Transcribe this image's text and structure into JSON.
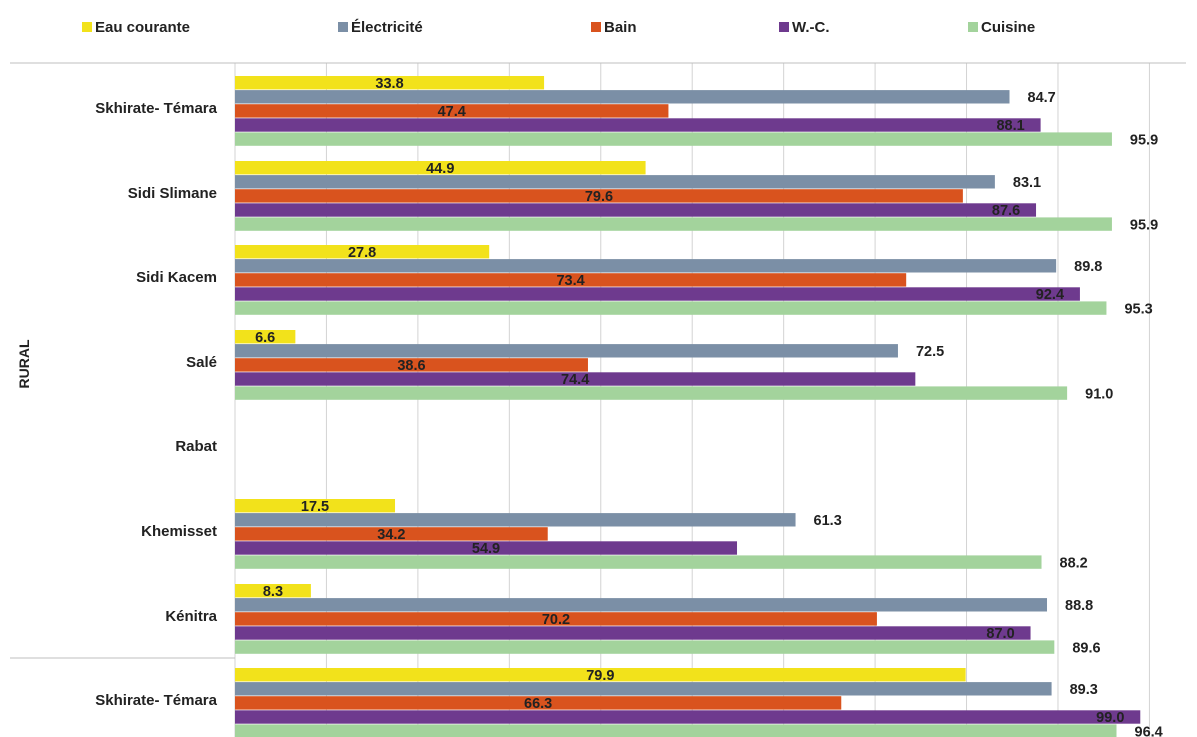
{
  "chart_data": {
    "type": "bar",
    "orientation": "horizontal",
    "title": "",
    "xlabel": "",
    "ylabel": "",
    "xlim": [
      0,
      100
    ],
    "grid": true,
    "legend_position": "top",
    "groups": [
      {
        "label": "RURAL",
        "categories": [
          "Skhirate- Témara",
          "Sidi Slimane",
          "Sidi Kacem",
          "Salé",
          "Rabat",
          "Khemisset",
          "Kénitra"
        ]
      },
      {
        "label": "",
        "categories": [
          "Skhirate- Témara"
        ]
      }
    ],
    "categories": [
      "Skhirate- Témara",
      "Sidi Slimane",
      "Sidi Kacem",
      "Salé",
      "Rabat",
      "Khemisset",
      "Kénitra",
      "Skhirate- Témara"
    ],
    "series": [
      {
        "name": "Eau courante",
        "color": "#f2e21b",
        "values": [
          33.8,
          44.9,
          27.8,
          6.6,
          null,
          17.5,
          8.3,
          79.9
        ]
      },
      {
        "name": "Électricité",
        "color": "#7b8fa6",
        "values": [
          84.7,
          83.1,
          89.8,
          72.5,
          null,
          61.3,
          88.8,
          89.3
        ]
      },
      {
        "name": "Bain",
        "color": "#d9531e",
        "values": [
          47.4,
          79.6,
          73.4,
          38.6,
          null,
          34.2,
          70.2,
          66.3
        ]
      },
      {
        "name": "W.-C.",
        "color": "#6e3a8e",
        "values": [
          88.1,
          87.6,
          92.4,
          74.4,
          null,
          54.9,
          87.0,
          99.0
        ]
      },
      {
        "name": "Cuisine",
        "color": "#a3d39c",
        "values": [
          95.9,
          95.9,
          95.3,
          91.0,
          null,
          88.2,
          89.6,
          96.4
        ]
      }
    ]
  }
}
